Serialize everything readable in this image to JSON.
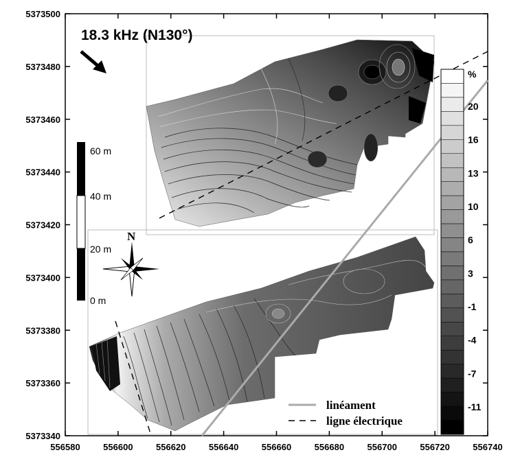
{
  "title": "18.3 kHz (N130°)",
  "north_label": "N",
  "x_ticks": [
    "556580",
    "556600",
    "556620",
    "556640",
    "556660",
    "556680",
    "556700",
    "556720",
    "556740"
  ],
  "y_ticks": [
    "5373500",
    "5373480",
    "5373460",
    "5373440",
    "5373420",
    "5373400",
    "5373380",
    "5373360",
    "5373340"
  ],
  "scale_bar": {
    "labels": [
      "60 m",
      "40 m",
      "20 m",
      "0 m"
    ]
  },
  "colorbar": {
    "unit": "%",
    "labels": [
      "20",
      "16",
      "13",
      "10",
      "6",
      "3",
      "-1",
      "-4",
      "-7",
      "-11"
    ]
  },
  "legend": {
    "lineament": "linéament",
    "power_line": "ligne électrique"
  },
  "colors": {
    "lineament": "#aaaaaa",
    "power_line": "#000000"
  }
}
